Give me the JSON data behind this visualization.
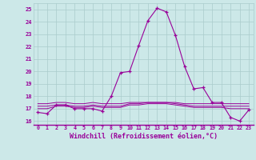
{
  "x": [
    0,
    1,
    2,
    3,
    4,
    5,
    6,
    7,
    8,
    9,
    10,
    11,
    12,
    13,
    14,
    15,
    16,
    17,
    18,
    19,
    20,
    21,
    22,
    23
  ],
  "y_main": [
    16.7,
    16.6,
    17.3,
    17.3,
    17.0,
    17.0,
    17.0,
    16.8,
    18.0,
    19.9,
    20.0,
    22.1,
    24.1,
    25.1,
    24.8,
    22.9,
    20.4,
    18.6,
    18.7,
    17.5,
    17.5,
    16.3,
    16.0,
    16.9
  ],
  "y_flat1": [
    17.0,
    17.0,
    17.2,
    17.2,
    17.1,
    17.1,
    17.2,
    17.1,
    17.1,
    17.1,
    17.3,
    17.3,
    17.4,
    17.4,
    17.4,
    17.3,
    17.2,
    17.1,
    17.1,
    17.1,
    17.1,
    17.0,
    17.0,
    17.0
  ],
  "y_flat2": [
    17.4,
    17.4,
    17.5,
    17.5,
    17.4,
    17.4,
    17.5,
    17.4,
    17.4,
    17.4,
    17.5,
    17.5,
    17.5,
    17.5,
    17.5,
    17.5,
    17.4,
    17.4,
    17.4,
    17.4,
    17.4,
    17.4,
    17.4,
    17.4
  ],
  "y_flat3": [
    17.2,
    17.2,
    17.3,
    17.3,
    17.2,
    17.2,
    17.3,
    17.2,
    17.2,
    17.2,
    17.4,
    17.4,
    17.5,
    17.5,
    17.5,
    17.4,
    17.3,
    17.2,
    17.2,
    17.2,
    17.2,
    17.2,
    17.2,
    17.2
  ],
  "line_color": "#990099",
  "bg_color": "#cce8e8",
  "grid_color": "#aacccc",
  "xlabel": "Windchill (Refroidissement éolien,°C)",
  "xlabel_fontsize": 6,
  "xtick_labels": [
    "0",
    "1",
    "2",
    "3",
    "4",
    "5",
    "6",
    "7",
    "8",
    "9",
    "10",
    "11",
    "12",
    "13",
    "14",
    "15",
    "16",
    "17",
    "18",
    "19",
    "20",
    "21",
    "22",
    "23"
  ],
  "ytick_labels": [
    "16",
    "17",
    "18",
    "19",
    "20",
    "21",
    "22",
    "23",
    "24",
    "25"
  ],
  "ylim": [
    15.7,
    25.5
  ],
  "xlim": [
    -0.5,
    23.5
  ]
}
